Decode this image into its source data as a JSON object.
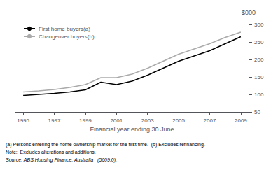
{
  "chart_data": {
    "type": "line",
    "x": [
      1995,
      1996,
      1997,
      1998,
      1999,
      2000,
      2001,
      2002,
      2003,
      2004,
      2005,
      2006,
      2007,
      2008,
      2009
    ],
    "series": [
      {
        "name": "First home buyers(a)",
        "color": "#000000",
        "values": [
          97,
          100,
          103,
          107,
          113,
          135,
          128,
          138,
          155,
          175,
          195,
          210,
          225,
          245,
          265
        ]
      },
      {
        "name": "Changeover buyers(b)",
        "color": "#aaaaaa",
        "values": [
          107,
          110,
          114,
          120,
          128,
          148,
          148,
          158,
          175,
          195,
          215,
          230,
          245,
          263,
          278
        ]
      }
    ],
    "xlabel": "Financial year ending 30 June",
    "ylabel": "$000",
    "xlim": [
      1994.5,
      2009.5
    ],
    "xticks": [
      1995,
      1997,
      1999,
      2001,
      2003,
      2005,
      2007,
      2009
    ],
    "ylim": [
      50,
      310
    ],
    "yticks": [
      50,
      100,
      150,
      200,
      250,
      300
    ],
    "grid": false,
    "legend": "upper left",
    "annotations": [
      "(a) Persons entering the home ownership market for the first time.  (b) Excludes refinancing.",
      "Note:  Excludes alterations and additions.",
      "Source: ABS Housing Finance, Australia   (5609.0)."
    ]
  }
}
